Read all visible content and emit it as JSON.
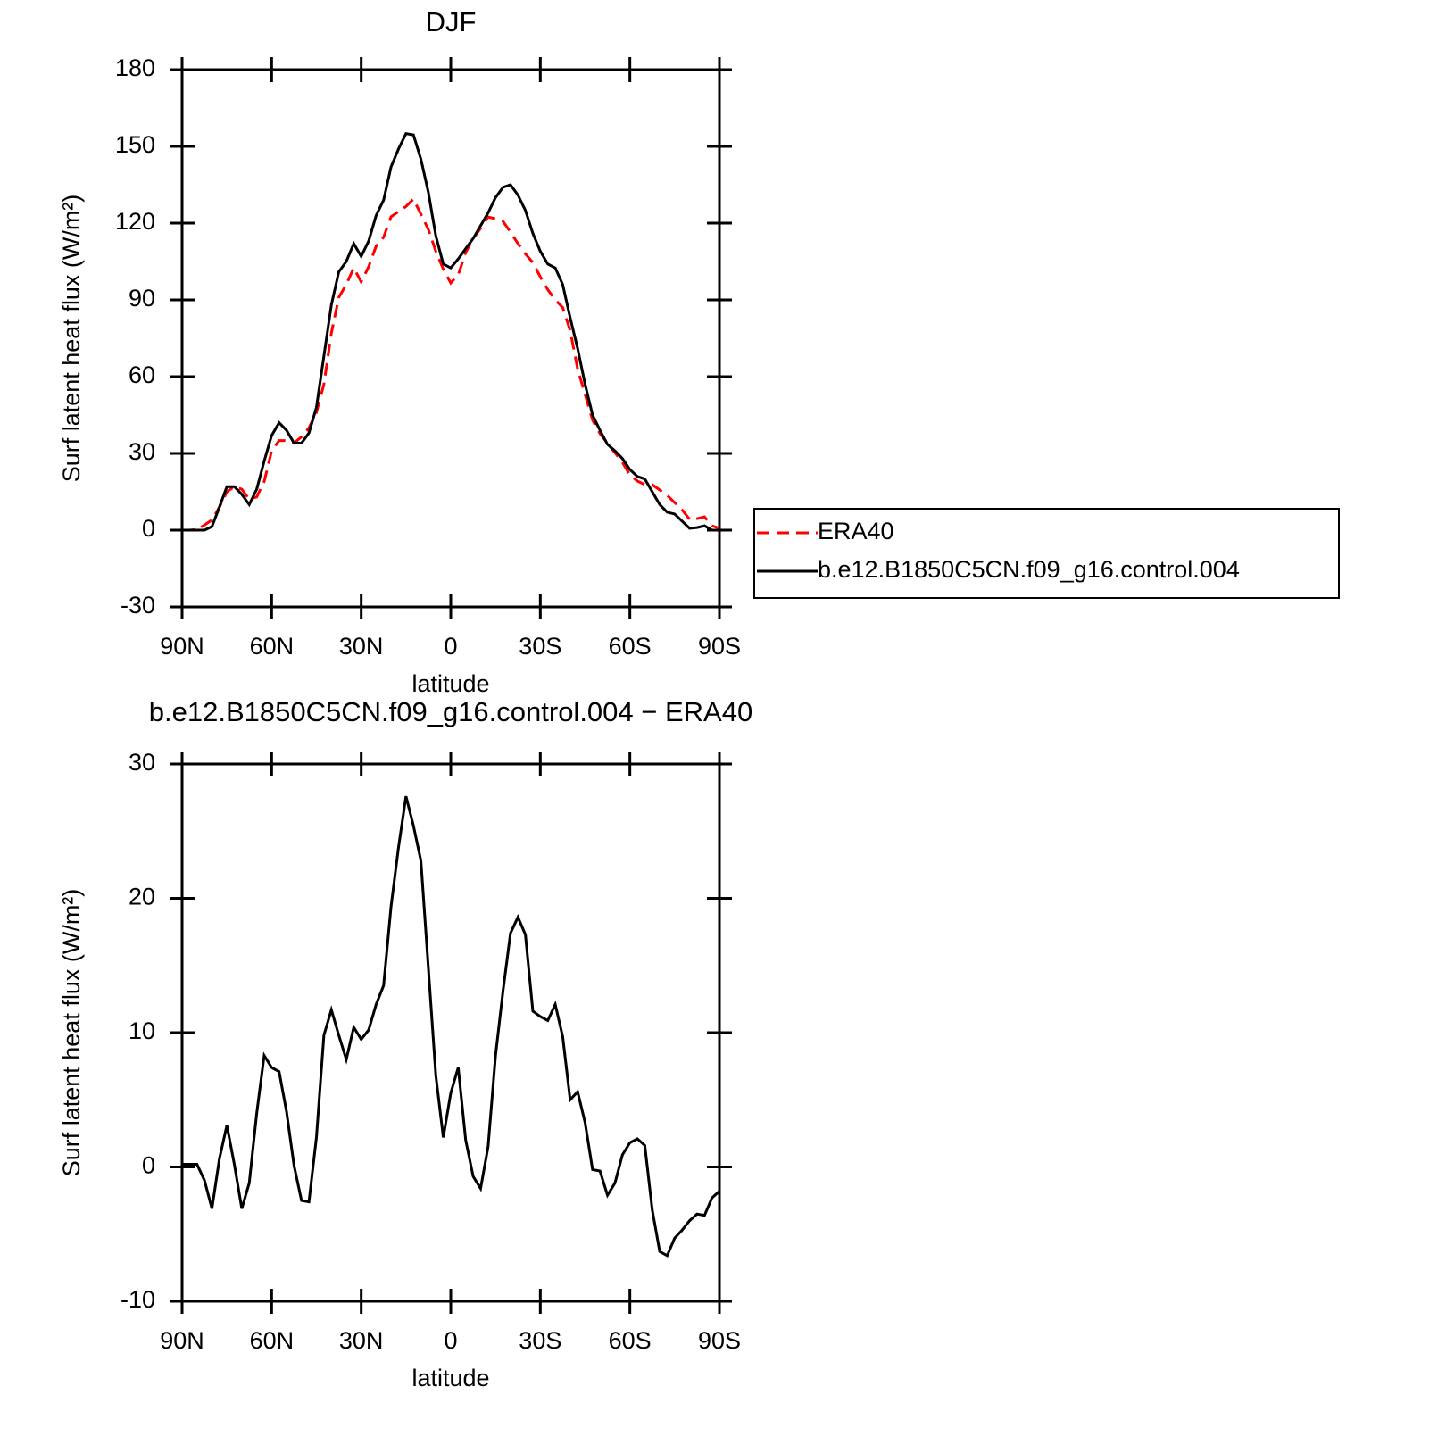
{
  "chart_data": [
    {
      "type": "line",
      "title": "DJF",
      "xlabel": "latitude",
      "ylabel": "Surf latent heat flux (W/m²)",
      "xlim": [
        90,
        -90
      ],
      "ylim": [
        -30,
        180
      ],
      "xticks": [
        {
          "value": 90,
          "label": "90N"
        },
        {
          "value": 60,
          "label": "60N"
        },
        {
          "value": 30,
          "label": "30N"
        },
        0,
        {
          "value": -30,
          "label": "30S"
        },
        {
          "value": -60,
          "label": "60S"
        },
        {
          "value": -90,
          "label": "90S"
        }
      ],
      "yticks": [
        -30,
        0,
        30,
        60,
        90,
        120,
        150,
        180
      ],
      "legend": "right",
      "x": [
        90,
        87.5,
        85,
        82.5,
        80,
        77.5,
        75,
        72.5,
        70,
        67.5,
        65,
        62.5,
        60,
        57.5,
        55,
        52.5,
        50,
        47.5,
        45,
        42.5,
        40,
        37.5,
        35,
        32.5,
        30,
        27.5,
        25,
        22.5,
        20,
        17.5,
        15,
        12.5,
        10,
        7.5,
        5,
        2.5,
        0,
        -2.5,
        -5,
        -7.5,
        -10,
        -12.5,
        -15,
        -17.5,
        -20,
        -22.5,
        -25,
        -27.5,
        -30,
        -32.5,
        -35,
        -37.5,
        -40,
        -42.5,
        -45,
        -47.5,
        -50,
        -52.5,
        -55,
        -57.5,
        -60,
        -62.5,
        -65,
        -67.5,
        -70,
        -72.5,
        -75,
        -77.5,
        -80,
        -82.5,
        -85,
        -87.5,
        -90
      ],
      "series": [
        {
          "name": "ERA40",
          "color": "#ff0000",
          "linestyle": "dashed",
          "values": [
            0,
            0,
            0.3,
            2,
            4,
            9,
            15,
            17,
            16,
            12,
            13,
            19,
            31,
            35,
            35,
            34,
            36.5,
            40,
            46,
            57,
            77,
            91,
            96,
            102.5,
            97,
            103,
            111,
            114.5,
            122.5,
            124.5,
            126.5,
            129.4,
            123.5,
            117.5,
            109,
            102,
            96.6,
            99.8,
            108.5,
            114,
            118,
            122.4,
            121.7,
            120.7,
            116.5,
            112,
            108,
            104.6,
            99,
            94,
            90,
            87,
            78,
            63,
            53,
            43,
            37.7,
            34,
            30.3,
            26.5,
            21.6,
            19.2,
            17.8,
            17.8,
            15.7,
            13.6,
            10.8,
            8,
            4.2,
            4.5,
            5.2,
            1.7,
            0.7
          ]
        },
        {
          "name": "b.e12.B1850C5CN.f09_g16.control.004",
          "color": "#000000",
          "linestyle": "solid",
          "values": [
            0,
            0,
            0,
            0,
            1.4,
            9,
            17,
            17,
            14,
            10,
            16,
            27,
            37,
            42,
            39,
            34,
            34,
            38,
            48,
            68,
            88,
            101,
            105,
            112,
            107,
            113,
            123,
            129,
            142,
            149,
            155,
            154.5,
            145,
            132,
            115,
            104,
            102.5,
            106,
            110,
            114,
            119,
            124,
            130,
            134,
            135,
            131,
            125,
            116,
            109,
            104,
            102.5,
            96,
            83,
            71,
            57,
            45,
            39,
            33.5,
            31,
            28,
            23.7,
            21,
            20,
            15,
            10,
            7,
            6.3,
            3.5,
            0.7,
            1,
            1.7,
            0,
            0
          ]
        }
      ]
    },
    {
      "type": "line",
      "title": "b.e12.B1850C5CN.f09_g16.control.004 − ERA40",
      "xlabel": "latitude",
      "ylabel": "Surf latent heat flux (W/m²)",
      "xlim": [
        90,
        -90
      ],
      "ylim": [
        -10,
        30
      ],
      "xticks": [
        {
          "value": 90,
          "label": "90N"
        },
        {
          "value": 60,
          "label": "60N"
        },
        {
          "value": 30,
          "label": "30N"
        },
        0,
        {
          "value": -30,
          "label": "30S"
        },
        {
          "value": -60,
          "label": "60S"
        },
        {
          "value": -90,
          "label": "90S"
        }
      ],
      "yticks": [
        -10,
        0,
        10,
        20,
        30
      ],
      "color": "#000000",
      "x": [
        90,
        87.5,
        85,
        82.5,
        80,
        77.5,
        75,
        72.5,
        70,
        67.5,
        65,
        62.5,
        60,
        57.5,
        55,
        52.5,
        50,
        47.5,
        45,
        42.5,
        40,
        37.5,
        35,
        32.5,
        30,
        27.5,
        25,
        22.5,
        20,
        17.5,
        15,
        12.5,
        10,
        7.5,
        5,
        2.5,
        0,
        -2.5,
        -5,
        -7.5,
        -10,
        -12.5,
        -15,
        -17.5,
        -20,
        -22.5,
        -25,
        -27.5,
        -30,
        -32.5,
        -35,
        -37.5,
        -40,
        -42.5,
        -45,
        -47.5,
        -50,
        -52.5,
        -55,
        -57.5,
        -60,
        -62.5,
        -65,
        -67.5,
        -70,
        -72.5,
        -75,
        -77.5,
        -80,
        -82.5,
        -85,
        -87.5,
        -90
      ],
      "values": [
        0.2,
        0.2,
        0.2,
        -1,
        -3.1,
        0.6,
        3.1,
        0.2,
        -3.1,
        -1.2,
        4,
        8.3,
        7.4,
        7.1,
        4.1,
        0.1,
        -2.5,
        -2.6,
        2.2,
        9.8,
        11.7,
        9.8,
        8,
        10.4,
        9.5,
        10.2,
        12.1,
        13.5,
        19.4,
        23.8,
        27.6,
        25.4,
        22.8,
        14.8,
        6.8,
        2.2,
        5.5,
        7.4,
        2,
        -0.7,
        -1.6,
        1.5,
        8.3,
        13.1,
        17.4,
        18.6,
        17.3,
        11.6,
        11.2,
        10.9,
        12.1,
        9.7,
        5,
        5.6,
        3.3,
        -0.2,
        -0.3,
        -2.1,
        -1.2,
        0.9,
        1.8,
        2.1,
        1.6,
        -3.2,
        -6.3,
        -6.6,
        -5.3,
        -4.7,
        -4,
        -3.5,
        -3.6,
        -2.3,
        -1.8
      ]
    }
  ]
}
